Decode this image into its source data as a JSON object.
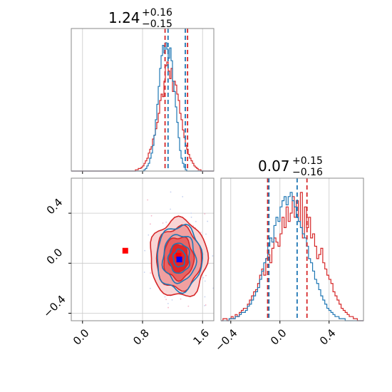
{
  "chart_data": {
    "type": "corner",
    "colors": {
      "red": "#d62728",
      "blue": "#1f77b4",
      "red_fill": "#f08080",
      "dark_red": "#e02020"
    },
    "params": [
      {
        "title_main": "1.24",
        "title_plus": "+0.16",
        "title_minus": "−0.15",
        "median": 1.24,
        "plus": 0.16,
        "minus": 0.15
      },
      {
        "title_main": "0.07",
        "title_plus": "+0.15",
        "title_minus": "−0.16",
        "median": 0.07,
        "plus": 0.15,
        "minus": 0.16
      }
    ],
    "x_axis_1": {
      "range": [
        -0.15,
        1.75
      ],
      "ticks": [
        0.0,
        0.8,
        1.6
      ],
      "tick_labels": [
        "0.0",
        "0.8",
        "1.6"
      ]
    },
    "x_axis_2": {
      "range": [
        -0.48,
        0.68
      ],
      "ticks": [
        -0.4,
        0.0,
        0.4
      ],
      "tick_labels": [
        "−0.4",
        "0.0",
        "0.4"
      ]
    },
    "y_axis_2d": {
      "range": [
        -0.46,
        0.68
      ],
      "ticks": [
        -0.4,
        0.0,
        0.4
      ],
      "tick_labels": [
        "−0.4",
        "0.0",
        "0.4"
      ]
    },
    "hist1_lines": {
      "red": [
        1.1,
        1.4
      ],
      "blue": [
        1.14,
        1.37
      ]
    },
    "hist2_lines": {
      "red": [
        -0.1,
        0.22
      ],
      "blue": [
        -0.09,
        0.14
      ]
    },
    "markers": [
      {
        "color": "red",
        "x": 0.57,
        "y": 0.1
      },
      {
        "color": "red",
        "x": 1.28,
        "y": 0.06
      },
      {
        "color": "blue",
        "x": 1.29,
        "y": 0.03
      }
    ],
    "contours_red": [
      {
        "cx": 1.28,
        "cy": 0.04,
        "rx": 0.38,
        "ry": 0.31
      },
      {
        "cx": 1.28,
        "cy": 0.04,
        "rx": 0.3,
        "ry": 0.25
      },
      {
        "cx": 1.28,
        "cy": 0.04,
        "rx": 0.2,
        "ry": 0.17
      },
      {
        "cx": 1.28,
        "cy": 0.04,
        "rx": 0.13,
        "ry": 0.11
      }
    ],
    "contours_blue": [
      {
        "cx": 1.29,
        "cy": 0.04,
        "rx": 0.3,
        "ry": 0.26
      },
      {
        "cx": 1.29,
        "cy": 0.04,
        "rx": 0.22,
        "ry": 0.19
      },
      {
        "cx": 1.29,
        "cy": 0.04,
        "rx": 0.14,
        "ry": 0.12
      },
      {
        "cx": 1.29,
        "cy": 0.04,
        "rx": 0.08,
        "ry": 0.07
      }
    ],
    "hist1_red_values": [
      0,
      0,
      0,
      0,
      0,
      0,
      0,
      0,
      0,
      0,
      0,
      0,
      0,
      0,
      0,
      0,
      0,
      0,
      0,
      0,
      0,
      0,
      0,
      0,
      0,
      0,
      0,
      0,
      0,
      0,
      0,
      0,
      0,
      0,
      0,
      0,
      0,
      0,
      0,
      0,
      0,
      0,
      0,
      0,
      0,
      1,
      1,
      2,
      2,
      3,
      4,
      6,
      8,
      10,
      14,
      17,
      19,
      25,
      28,
      33,
      38,
      45,
      55,
      60,
      58,
      70,
      82,
      85,
      78,
      72,
      80,
      62,
      70,
      67,
      60,
      55,
      45,
      40,
      32,
      26,
      20,
      17,
      13,
      10,
      8,
      6,
      4,
      3,
      2,
      1,
      1,
      0,
      0,
      0,
      0,
      0,
      0,
      0,
      0,
      0
    ],
    "hist1_blue_values": [
      0,
      0,
      0,
      0,
      0,
      0,
      0,
      0,
      0,
      0,
      0,
      0,
      0,
      0,
      0,
      0,
      0,
      0,
      0,
      0,
      0,
      0,
      0,
      0,
      0,
      0,
      0,
      0,
      0,
      0,
      0,
      0,
      0,
      0,
      0,
      0,
      0,
      0,
      0,
      0,
      0,
      0,
      0,
      0,
      0,
      0,
      0,
      0,
      0,
      0,
      0,
      1,
      2,
      4,
      6,
      10,
      14,
      20,
      28,
      40,
      52,
      66,
      80,
      90,
      98,
      92,
      100,
      95,
      88,
      96,
      86,
      70,
      62,
      50,
      38,
      26,
      16,
      10,
      6,
      3,
      1,
      0,
      0,
      0,
      0,
      0,
      0,
      0,
      0,
      0,
      0,
      0,
      0,
      0,
      0,
      0,
      0,
      0,
      0,
      0
    ],
    "hist2_red_values": [
      0,
      1,
      1,
      0,
      1,
      2,
      1,
      3,
      2,
      4,
      5,
      6,
      6,
      8,
      10,
      12,
      14,
      15,
      18,
      22,
      25,
      22,
      30,
      32,
      28,
      35,
      40,
      38,
      36,
      42,
      50,
      45,
      55,
      48,
      52,
      60,
      50,
      58,
      48,
      62,
      40,
      55,
      45,
      50,
      40,
      42,
      36,
      30,
      32,
      35,
      28,
      25,
      22,
      20,
      18,
      14,
      12,
      10,
      8,
      6,
      5,
      4,
      3,
      2,
      2,
      1,
      1,
      0,
      0,
      0
    ],
    "hist2_blue_values": [
      0,
      0,
      0,
      0,
      1,
      1,
      1,
      2,
      2,
      3,
      4,
      4,
      5,
      7,
      8,
      10,
      12,
      14,
      16,
      20,
      24,
      28,
      30,
      36,
      40,
      38,
      46,
      50,
      48,
      55,
      58,
      60,
      56,
      60,
      62,
      58,
      55,
      50,
      48,
      45,
      42,
      40,
      36,
      30,
      28,
      24,
      20,
      18,
      15,
      12,
      10,
      8,
      6,
      5,
      4,
      3,
      2,
      2,
      1,
      1,
      1,
      0,
      0,
      0,
      0,
      0,
      0,
      0,
      0,
      0
    ]
  }
}
